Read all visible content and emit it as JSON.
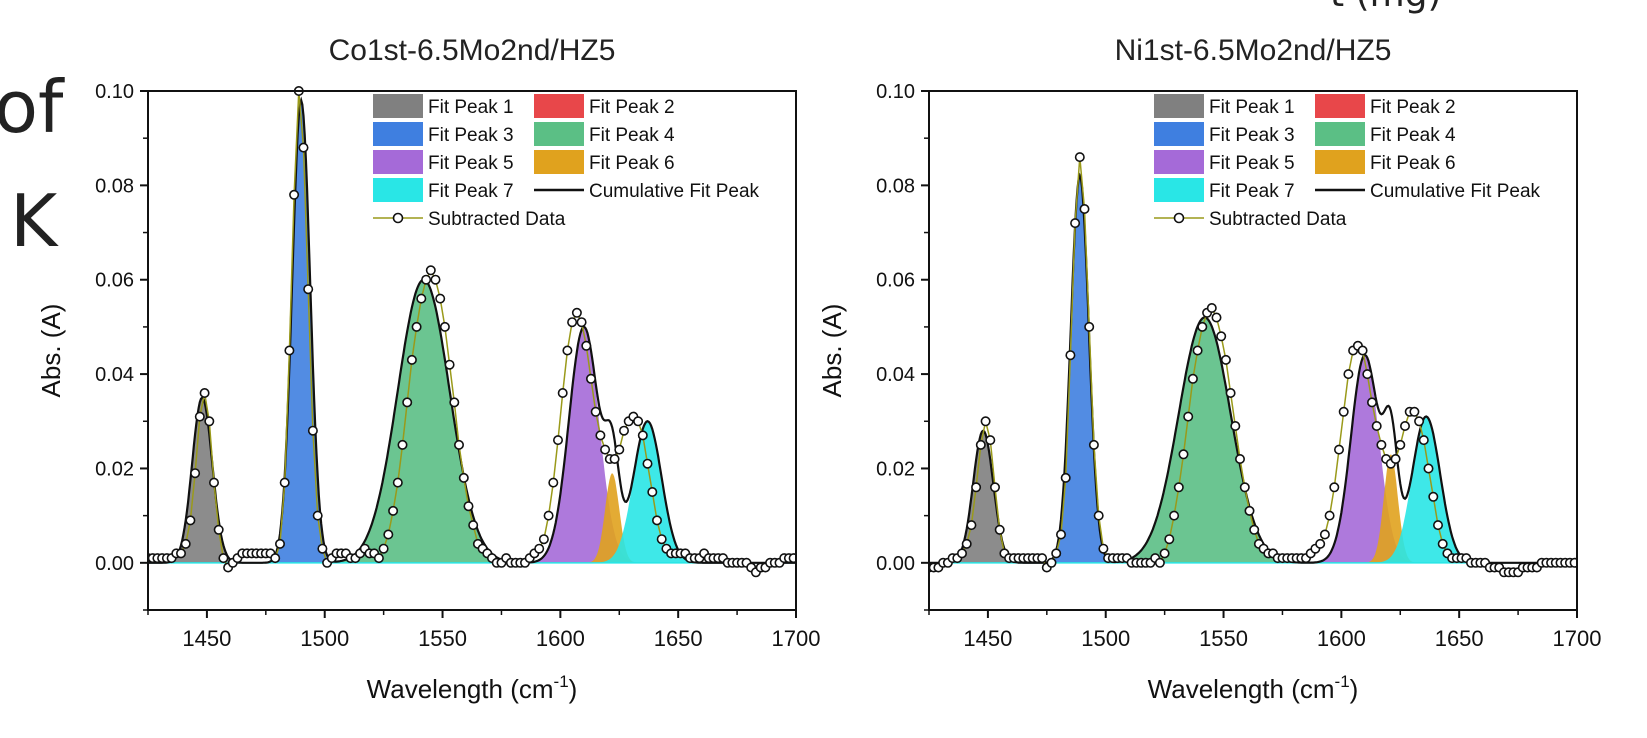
{
  "slide_fragments": {
    "top_cut": "t (mg)",
    "left_word": "of",
    "left_letter": "K"
  },
  "colors": {
    "peak1": "#808080",
    "peak2": "#e8474a",
    "peak3": "#3f7fe0",
    "peak4": "#5bbf85",
    "peak5": "#a56ad8",
    "peak6": "#e0a21e",
    "peak7": "#29e6e6",
    "data_line": "#9a9a1a",
    "cumulative": "#111111"
  },
  "legend": [
    {
      "key": "peak1",
      "label": "Fit Peak 1",
      "kind": "fill"
    },
    {
      "key": "peak2",
      "label": "Fit Peak 2",
      "kind": "fill"
    },
    {
      "key": "peak3",
      "label": "Fit Peak 3",
      "kind": "fill"
    },
    {
      "key": "peak4",
      "label": "Fit Peak 4",
      "kind": "fill"
    },
    {
      "key": "peak5",
      "label": "Fit Peak 5",
      "kind": "fill"
    },
    {
      "key": "peak6",
      "label": "Fit Peak 6",
      "kind": "fill"
    },
    {
      "key": "peak7",
      "label": "Fit Peak 7",
      "kind": "fill"
    },
    {
      "key": "cumulative",
      "label": "Cumulative Fit Peak",
      "kind": "line"
    },
    {
      "key": "data",
      "label": "Subtracted Data",
      "kind": "marker"
    }
  ],
  "chart_data": [
    {
      "type": "area",
      "title": "Co1st-6.5Mo2nd/HZ5",
      "xlabel": "Wavelength (cm-1)",
      "ylabel": "Abs. (A)",
      "xlim": [
        1425,
        1700
      ],
      "ylim": [
        -0.01,
        0.1
      ],
      "xticks": [
        1450,
        1500,
        1550,
        1600,
        1650,
        1700
      ],
      "yticks": [
        0.0,
        0.02,
        0.04,
        0.06,
        0.08,
        0.1
      ],
      "xtick_labels": [
        "1450",
        "1500",
        "1550",
        "1600",
        "1650",
        "1700"
      ],
      "ytick_labels": [
        "0.00",
        "0.02",
        "0.04",
        "0.06",
        "0.08",
        "0.10"
      ],
      "legend_position": "top-right",
      "peaks": [
        {
          "name": "Fit Peak 1",
          "color_key": "peak1",
          "center": 1448,
          "height": 0.035,
          "fwhm": 10
        },
        {
          "name": "Fit Peak 2",
          "color_key": "peak2",
          "center": 1490,
          "height": 0.0,
          "fwhm": 8
        },
        {
          "name": "Fit Peak 3",
          "color_key": "peak3",
          "center": 1490,
          "height": 0.098,
          "fwhm": 9
        },
        {
          "name": "Fit Peak 4",
          "color_key": "peak4",
          "center": 1542,
          "height": 0.06,
          "fwhm": 26
        },
        {
          "name": "Fit Peak 5",
          "color_key": "peak5",
          "center": 1610,
          "height": 0.05,
          "fwhm": 15
        },
        {
          "name": "Fit Peak 6",
          "color_key": "peak6",
          "center": 1622,
          "height": 0.019,
          "fwhm": 7
        },
        {
          "name": "Fit Peak 7",
          "color_key": "peak7",
          "center": 1637,
          "height": 0.03,
          "fwhm": 14
        }
      ],
      "data_x": [
        1425,
        1427,
        1429,
        1431,
        1433,
        1435,
        1437,
        1439,
        1441,
        1443,
        1445,
        1447,
        1449,
        1451,
        1453,
        1455,
        1457,
        1459,
        1461,
        1463,
        1465,
        1467,
        1469,
        1471,
        1473,
        1475,
        1477,
        1479,
        1481,
        1483,
        1485,
        1487,
        1489,
        1491,
        1493,
        1495,
        1497,
        1499,
        1501,
        1503,
        1505,
        1507,
        1509,
        1511,
        1513,
        1515,
        1517,
        1519,
        1521,
        1523,
        1525,
        1527,
        1529,
        1531,
        1533,
        1535,
        1537,
        1539,
        1541,
        1543,
        1545,
        1547,
        1549,
        1551,
        1553,
        1555,
        1557,
        1559,
        1561,
        1563,
        1565,
        1567,
        1569,
        1571,
        1573,
        1575,
        1577,
        1579,
        1581,
        1583,
        1585,
        1587,
        1589,
        1591,
        1593,
        1595,
        1597,
        1599,
        1601,
        1603,
        1605,
        1607,
        1609,
        1611,
        1613,
        1615,
        1617,
        1619,
        1621,
        1623,
        1625,
        1627,
        1629,
        1631,
        1633,
        1635,
        1637,
        1639,
        1641,
        1643,
        1645,
        1647,
        1649,
        1651,
        1653,
        1655,
        1657,
        1659,
        1661,
        1663,
        1665,
        1667,
        1669,
        1671,
        1673,
        1675,
        1677,
        1679,
        1681,
        1683,
        1685,
        1687,
        1689,
        1691,
        1693,
        1695,
        1697,
        1699
      ],
      "data_y": [
        0.001,
        0.001,
        0.001,
        0.001,
        0.001,
        0.001,
        0.002,
        0.002,
        0.004,
        0.009,
        0.019,
        0.031,
        0.036,
        0.03,
        0.017,
        0.007,
        0.001,
        -0.001,
        0.0,
        0.001,
        0.002,
        0.002,
        0.002,
        0.002,
        0.002,
        0.002,
        0.002,
        0.001,
        0.004,
        0.017,
        0.045,
        0.078,
        0.1,
        0.088,
        0.058,
        0.028,
        0.01,
        0.003,
        0.0,
        0.001,
        0.002,
        0.002,
        0.002,
        0.001,
        0.001,
        0.002,
        0.003,
        0.002,
        0.002,
        0.001,
        0.003,
        0.006,
        0.011,
        0.017,
        0.025,
        0.034,
        0.043,
        0.05,
        0.056,
        0.06,
        0.062,
        0.06,
        0.056,
        0.05,
        0.042,
        0.034,
        0.025,
        0.018,
        0.012,
        0.008,
        0.004,
        0.003,
        0.002,
        0.001,
        0.0,
        0.0,
        0.001,
        0.0,
        0.0,
        0.0,
        0.0,
        0.001,
        0.002,
        0.003,
        0.005,
        0.01,
        0.017,
        0.026,
        0.036,
        0.045,
        0.051,
        0.053,
        0.051,
        0.046,
        0.039,
        0.032,
        0.027,
        0.024,
        0.022,
        0.022,
        0.024,
        0.028,
        0.03,
        0.031,
        0.03,
        0.027,
        0.021,
        0.015,
        0.009,
        0.005,
        0.003,
        0.002,
        0.002,
        0.002,
        0.002,
        0.001,
        0.001,
        0.001,
        0.002,
        0.001,
        0.001,
        0.001,
        0.001,
        0.0,
        0.0,
        0.0,
        0.0,
        0.0,
        -0.001,
        -0.002,
        -0.001,
        -0.001,
        0.0,
        0.0,
        0.0,
        0.001,
        0.001,
        0.001
      ]
    },
    {
      "type": "area",
      "title": "Ni1st-6.5Mo2nd/HZ5",
      "xlabel": "Wavelength (cm-1)",
      "ylabel": "Abs. (A)",
      "xlim": [
        1425,
        1700
      ],
      "ylim": [
        -0.01,
        0.1
      ],
      "xticks": [
        1450,
        1500,
        1550,
        1600,
        1650,
        1700
      ],
      "yticks": [
        0.0,
        0.02,
        0.04,
        0.06,
        0.08,
        0.1
      ],
      "xtick_labels": [
        "1450",
        "1500",
        "1550",
        "1600",
        "1650",
        "1700"
      ],
      "ytick_labels": [
        "0.00",
        "0.02",
        "0.04",
        "0.06",
        "0.08",
        "0.10"
      ],
      "legend_position": "top-right",
      "peaks": [
        {
          "name": "Fit Peak 1",
          "color_key": "peak1",
          "center": 1448,
          "height": 0.028,
          "fwhm": 10
        },
        {
          "name": "Fit Peak 2",
          "color_key": "peak2",
          "center": 1490,
          "height": 0.0,
          "fwhm": 8
        },
        {
          "name": "Fit Peak 3",
          "color_key": "peak3",
          "center": 1489,
          "height": 0.082,
          "fwhm": 9
        },
        {
          "name": "Fit Peak 4",
          "color_key": "peak4",
          "center": 1542,
          "height": 0.052,
          "fwhm": 26
        },
        {
          "name": "Fit Peak 5",
          "color_key": "peak5",
          "center": 1610,
          "height": 0.044,
          "fwhm": 14
        },
        {
          "name": "Fit Peak 6",
          "color_key": "peak6",
          "center": 1621,
          "height": 0.023,
          "fwhm": 7
        },
        {
          "name": "Fit Peak 7",
          "color_key": "peak7",
          "center": 1636,
          "height": 0.031,
          "fwhm": 14
        }
      ],
      "data_x": [
        1425,
        1427,
        1429,
        1431,
        1433,
        1435,
        1437,
        1439,
        1441,
        1443,
        1445,
        1447,
        1449,
        1451,
        1453,
        1455,
        1457,
        1459,
        1461,
        1463,
        1465,
        1467,
        1469,
        1471,
        1473,
        1475,
        1477,
        1479,
        1481,
        1483,
        1485,
        1487,
        1489,
        1491,
        1493,
        1495,
        1497,
        1499,
        1501,
        1503,
        1505,
        1507,
        1509,
        1511,
        1513,
        1515,
        1517,
        1519,
        1521,
        1523,
        1525,
        1527,
        1529,
        1531,
        1533,
        1535,
        1537,
        1539,
        1541,
        1543,
        1545,
        1547,
        1549,
        1551,
        1553,
        1555,
        1557,
        1559,
        1561,
        1563,
        1565,
        1567,
        1569,
        1571,
        1573,
        1575,
        1577,
        1579,
        1581,
        1583,
        1585,
        1587,
        1589,
        1591,
        1593,
        1595,
        1597,
        1599,
        1601,
        1603,
        1605,
        1607,
        1609,
        1611,
        1613,
        1615,
        1617,
        1619,
        1621,
        1623,
        1625,
        1627,
        1629,
        1631,
        1633,
        1635,
        1637,
        1639,
        1641,
        1643,
        1645,
        1647,
        1649,
        1651,
        1653,
        1655,
        1657,
        1659,
        1661,
        1663,
        1665,
        1667,
        1669,
        1671,
        1673,
        1675,
        1677,
        1679,
        1681,
        1683,
        1685,
        1687,
        1689,
        1691,
        1693,
        1695,
        1697,
        1699
      ],
      "data_y": [
        -0.001,
        -0.001,
        -0.001,
        0.0,
        0.0,
        0.001,
        0.001,
        0.002,
        0.004,
        0.008,
        0.016,
        0.025,
        0.03,
        0.026,
        0.016,
        0.007,
        0.002,
        0.001,
        0.001,
        0.001,
        0.001,
        0.001,
        0.001,
        0.001,
        0.001,
        -0.001,
        0.0,
        0.002,
        0.006,
        0.018,
        0.044,
        0.072,
        0.086,
        0.075,
        0.05,
        0.025,
        0.01,
        0.003,
        0.001,
        0.001,
        0.001,
        0.001,
        0.001,
        0.0,
        0.0,
        0.0,
        0.0,
        0.0,
        0.001,
        0.0,
        0.002,
        0.005,
        0.01,
        0.016,
        0.023,
        0.031,
        0.039,
        0.045,
        0.05,
        0.053,
        0.054,
        0.052,
        0.048,
        0.043,
        0.036,
        0.029,
        0.022,
        0.016,
        0.011,
        0.007,
        0.004,
        0.003,
        0.002,
        0.002,
        0.001,
        0.001,
        0.001,
        0.001,
        0.001,
        0.001,
        0.001,
        0.002,
        0.003,
        0.004,
        0.006,
        0.01,
        0.016,
        0.024,
        0.032,
        0.04,
        0.045,
        0.046,
        0.045,
        0.04,
        0.034,
        0.029,
        0.025,
        0.022,
        0.021,
        0.022,
        0.025,
        0.029,
        0.032,
        0.032,
        0.03,
        0.026,
        0.02,
        0.014,
        0.008,
        0.004,
        0.002,
        0.001,
        0.001,
        0.001,
        0.001,
        0.0,
        0.0,
        0.0,
        0.0,
        -0.001,
        -0.001,
        -0.001,
        -0.002,
        -0.002,
        -0.002,
        -0.002,
        -0.001,
        -0.001,
        -0.001,
        -0.001,
        0.0,
        0.0,
        0.0,
        0.0,
        0.0,
        0.0,
        0.0,
        0.0
      ]
    }
  ]
}
